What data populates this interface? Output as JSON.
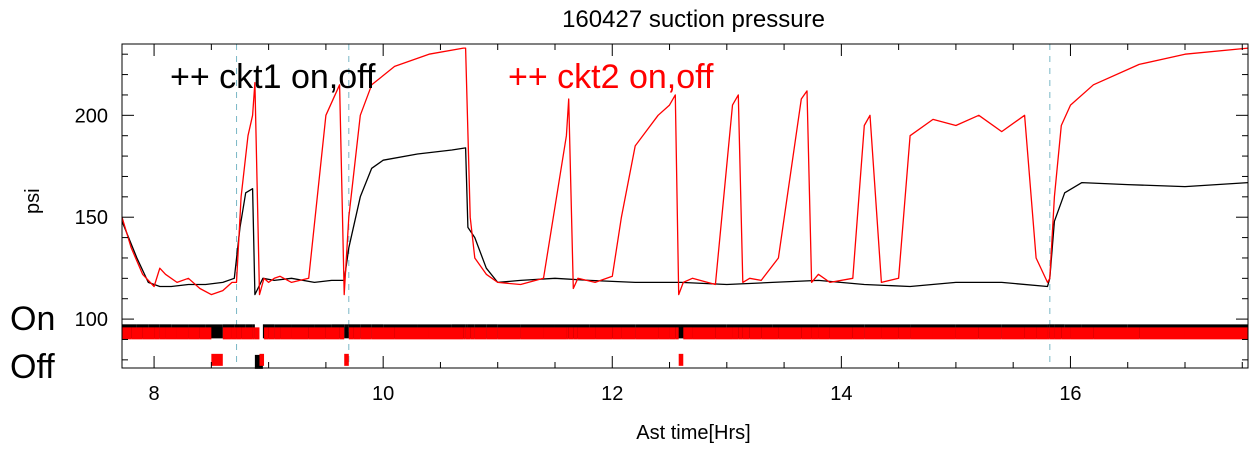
{
  "chart_data": {
    "type": "line",
    "title": "160427 suction pressure",
    "xlabel": "Ast time[Hrs]",
    "ylabel": "psi",
    "xlim": [
      7.72,
      17.55
    ],
    "ylim": [
      76,
      235
    ],
    "xticks": [
      8,
      10,
      12,
      14,
      16
    ],
    "xtick_labels": [
      "8",
      "10",
      "12",
      "14",
      "16"
    ],
    "yticks": [
      100,
      150,
      200
    ],
    "ytick_labels": [
      "100",
      "150",
      "200"
    ],
    "grid": false,
    "state_labels": {
      "on": "On",
      "off": "Off"
    },
    "state_levels": {
      "on_ckt1": 94,
      "off_ckt1": 79,
      "on_ckt2": 93,
      "off_ckt2": 80
    },
    "legend_position": "top-left",
    "legend": [
      {
        "text": "++ ckt1 on,off",
        "color": "#000000"
      },
      {
        "text": "++ ckt2 on,off",
        "color": "#ff0000"
      }
    ],
    "dashed_markers": {
      "color": "#7ab7c6",
      "x": [
        8.72,
        9.7,
        15.82
      ]
    },
    "series": [
      {
        "name": "ckt1",
        "color": "#000000",
        "x": [
          7.72,
          7.85,
          7.95,
          8.05,
          8.15,
          8.3,
          8.45,
          8.6,
          8.7,
          8.75,
          8.8,
          8.86,
          8.88,
          8.95,
          9.05,
          9.2,
          9.4,
          9.55,
          9.66,
          9.7,
          9.8,
          9.9,
          10.0,
          10.3,
          10.6,
          10.72,
          10.74,
          10.8,
          10.9,
          11.0,
          11.2,
          11.5,
          11.8,
          12.2,
          12.6,
          13.0,
          13.4,
          13.8,
          14.2,
          14.6,
          15.0,
          15.4,
          15.8,
          15.82,
          15.86,
          15.95,
          16.1,
          16.5,
          17.0,
          17.55
        ],
        "y": [
          148,
          130,
          118,
          116,
          116,
          117,
          117,
          118,
          120,
          145,
          162,
          164,
          112,
          120,
          119,
          120,
          118,
          119,
          119,
          135,
          160,
          174,
          178,
          181,
          183,
          184,
          145,
          140,
          125,
          118,
          119,
          120,
          119,
          118,
          118,
          117,
          118,
          119,
          117,
          116,
          118,
          118,
          116,
          120,
          148,
          162,
          167,
          166,
          165,
          167
        ]
      },
      {
        "name": "ckt2",
        "color": "#ff0000",
        "x": [
          7.72,
          7.8,
          7.9,
          8.0,
          8.05,
          8.1,
          8.2,
          8.3,
          8.4,
          8.5,
          8.6,
          8.68,
          8.72,
          8.76,
          8.82,
          8.86,
          8.88,
          8.92,
          8.96,
          9.0,
          9.05,
          9.1,
          9.2,
          9.35,
          9.5,
          9.62,
          9.66,
          9.7,
          9.74,
          9.8,
          9.9,
          10.1,
          10.4,
          10.7,
          10.72,
          10.76,
          10.8,
          10.9,
          11.0,
          11.2,
          11.4,
          11.6,
          11.62,
          11.66,
          11.7,
          11.85,
          12.0,
          12.08,
          12.2,
          12.4,
          12.5,
          12.55,
          12.58,
          12.62,
          12.7,
          12.9,
          13.05,
          13.1,
          13.14,
          13.2,
          13.3,
          13.45,
          13.65,
          13.7,
          13.74,
          13.8,
          13.9,
          14.1,
          14.2,
          14.25,
          14.35,
          14.5,
          14.6,
          14.8,
          15.0,
          15.2,
          15.4,
          15.6,
          15.7,
          15.8,
          15.82,
          15.86,
          15.92,
          16.0,
          16.2,
          16.6,
          17.0,
          17.55
        ],
        "y": [
          150,
          135,
          122,
          116,
          125,
          122,
          118,
          120,
          115,
          112,
          114,
          118,
          118,
          160,
          190,
          200,
          216,
          112,
          120,
          118,
          120,
          121,
          118,
          120,
          200,
          215,
          112,
          150,
          170,
          200,
          215,
          224,
          230,
          233,
          233,
          150,
          130,
          122,
          118,
          117,
          120,
          190,
          208,
          115,
          120,
          118,
          121,
          150,
          185,
          200,
          205,
          210,
          112,
          118,
          120,
          117,
          205,
          210,
          118,
          120,
          119,
          130,
          208,
          212,
          118,
          122,
          118,
          120,
          195,
          200,
          118,
          120,
          190,
          198,
          195,
          200,
          192,
          200,
          130,
          118,
          120,
          160,
          195,
          205,
          215,
          225,
          230,
          233
        ]
      }
    ]
  }
}
